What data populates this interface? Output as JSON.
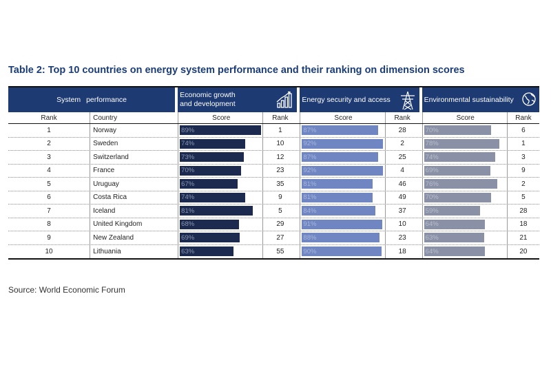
{
  "title": "Table 2: Top 10 countries on energy system performance and their ranking on dimension scores",
  "source": "Source:  World Economic Forum",
  "colors": {
    "header_bg": "#1d3a73",
    "bar_economic": "#1b2a4e",
    "bar_security": "#6f86c2",
    "bar_environment": "#8a91a6"
  },
  "chart_data": {
    "type": "table",
    "title": "Table 2: Top 10 countries on energy system performance and their ranking on dimension scores",
    "groups": {
      "system": "System  performance",
      "economic": "Economic growth and development",
      "security": "Energy security and access",
      "environment": "Environmental sustainability"
    },
    "group_icons": {
      "economic": "bar-chart-icon",
      "security": "power-pylon-icon",
      "environment": "globe-leaf-icon"
    },
    "columns": {
      "rank": "Rank",
      "country": "Country",
      "score": "Score",
      "dim_rank": "Rank"
    },
    "rows": [
      {
        "rank": "1",
        "country": "Norway",
        "econ_score": 89,
        "econ_label": "89%",
        "econ_rank": "1",
        "sec_score": 87,
        "sec_label": "87%",
        "sec_rank": "28",
        "env_score": 70,
        "env_label": "70%",
        "env_rank": "6"
      },
      {
        "rank": "2",
        "country": "Sweden",
        "econ_score": 74,
        "econ_label": "74%",
        "econ_rank": "10",
        "sec_score": 92,
        "sec_label": "92%",
        "sec_rank": "2",
        "env_score": 78,
        "env_label": "78%",
        "env_rank": "1"
      },
      {
        "rank": "3",
        "country": "Switzerland",
        "econ_score": 73,
        "econ_label": "73%",
        "econ_rank": "12",
        "sec_score": 87,
        "sec_label": "87%",
        "sec_rank": "25",
        "env_score": 74,
        "env_label": "74%",
        "env_rank": "3"
      },
      {
        "rank": "4",
        "country": "France",
        "econ_score": 70,
        "econ_label": "70%",
        "econ_rank": "23",
        "sec_score": 92,
        "sec_label": "92%",
        "sec_rank": "4",
        "env_score": 69,
        "env_label": "69%",
        "env_rank": "9"
      },
      {
        "rank": "5",
        "country": "Uruguay",
        "econ_score": 67,
        "econ_label": "67%",
        "econ_rank": "35",
        "sec_score": 81,
        "sec_label": "81%",
        "sec_rank": "46",
        "env_score": 76,
        "env_label": "76%",
        "env_rank": "2"
      },
      {
        "rank": "6",
        "country": "Costa Rica",
        "econ_score": 74,
        "econ_label": "74%",
        "econ_rank": "9",
        "sec_score": 81,
        "sec_label": "81%",
        "sec_rank": "49",
        "env_score": 70,
        "env_label": "70%",
        "env_rank": "5"
      },
      {
        "rank": "7",
        "country": "Iceland",
        "econ_score": 81,
        "econ_label": "81%",
        "econ_rank": "5",
        "sec_score": 84,
        "sec_label": "84%",
        "sec_rank": "37",
        "env_score": 59,
        "env_label": "59%",
        "env_rank": "28"
      },
      {
        "rank": "8",
        "country": "United Kingdom",
        "econ_score": 68,
        "econ_label": "68%",
        "econ_rank": "29",
        "sec_score": 91,
        "sec_label": "91%",
        "sec_rank": "10",
        "env_score": 64,
        "env_label": "64%",
        "env_rank": "18"
      },
      {
        "rank": "9",
        "country": "New Zealand",
        "econ_score": 69,
        "econ_label": "69%",
        "econ_rank": "27",
        "sec_score": 88,
        "sec_label": "88%",
        "sec_rank": "23",
        "env_score": 63,
        "env_label": "63%",
        "env_rank": "21"
      },
      {
        "rank": "10",
        "country": "Lithuania",
        "econ_score": 63,
        "econ_label": "63%",
        "econ_rank": "55",
        "sec_score": 90,
        "sec_label": "90%",
        "sec_rank": "18",
        "env_score": 64,
        "env_label": "64%",
        "env_rank": "20"
      }
    ]
  }
}
